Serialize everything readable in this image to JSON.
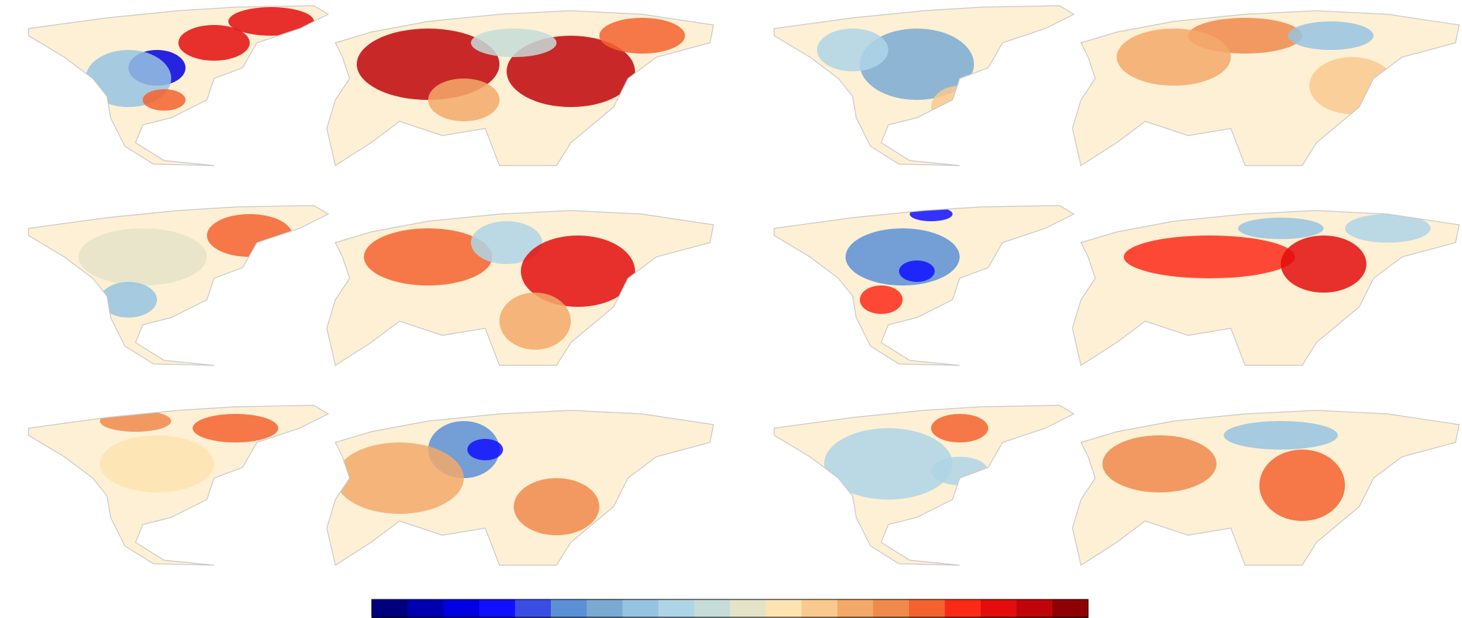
{
  "colorbar": {
    "colors": [
      "#00007f",
      "#0000b0",
      "#0000e0",
      "#1010ff",
      "#3a4ee6",
      "#5b8fd6",
      "#7aaad2",
      "#96c3e0",
      "#aed5e6",
      "#c5dcd8",
      "#e4e3c8",
      "#fde3b0",
      "#f9c98e",
      "#f3a96a",
      "#ef8a4c",
      "#f4622e",
      "#fb2a17",
      "#e30d0d",
      "#c0050a",
      "#8f0005"
    ]
  }
}
